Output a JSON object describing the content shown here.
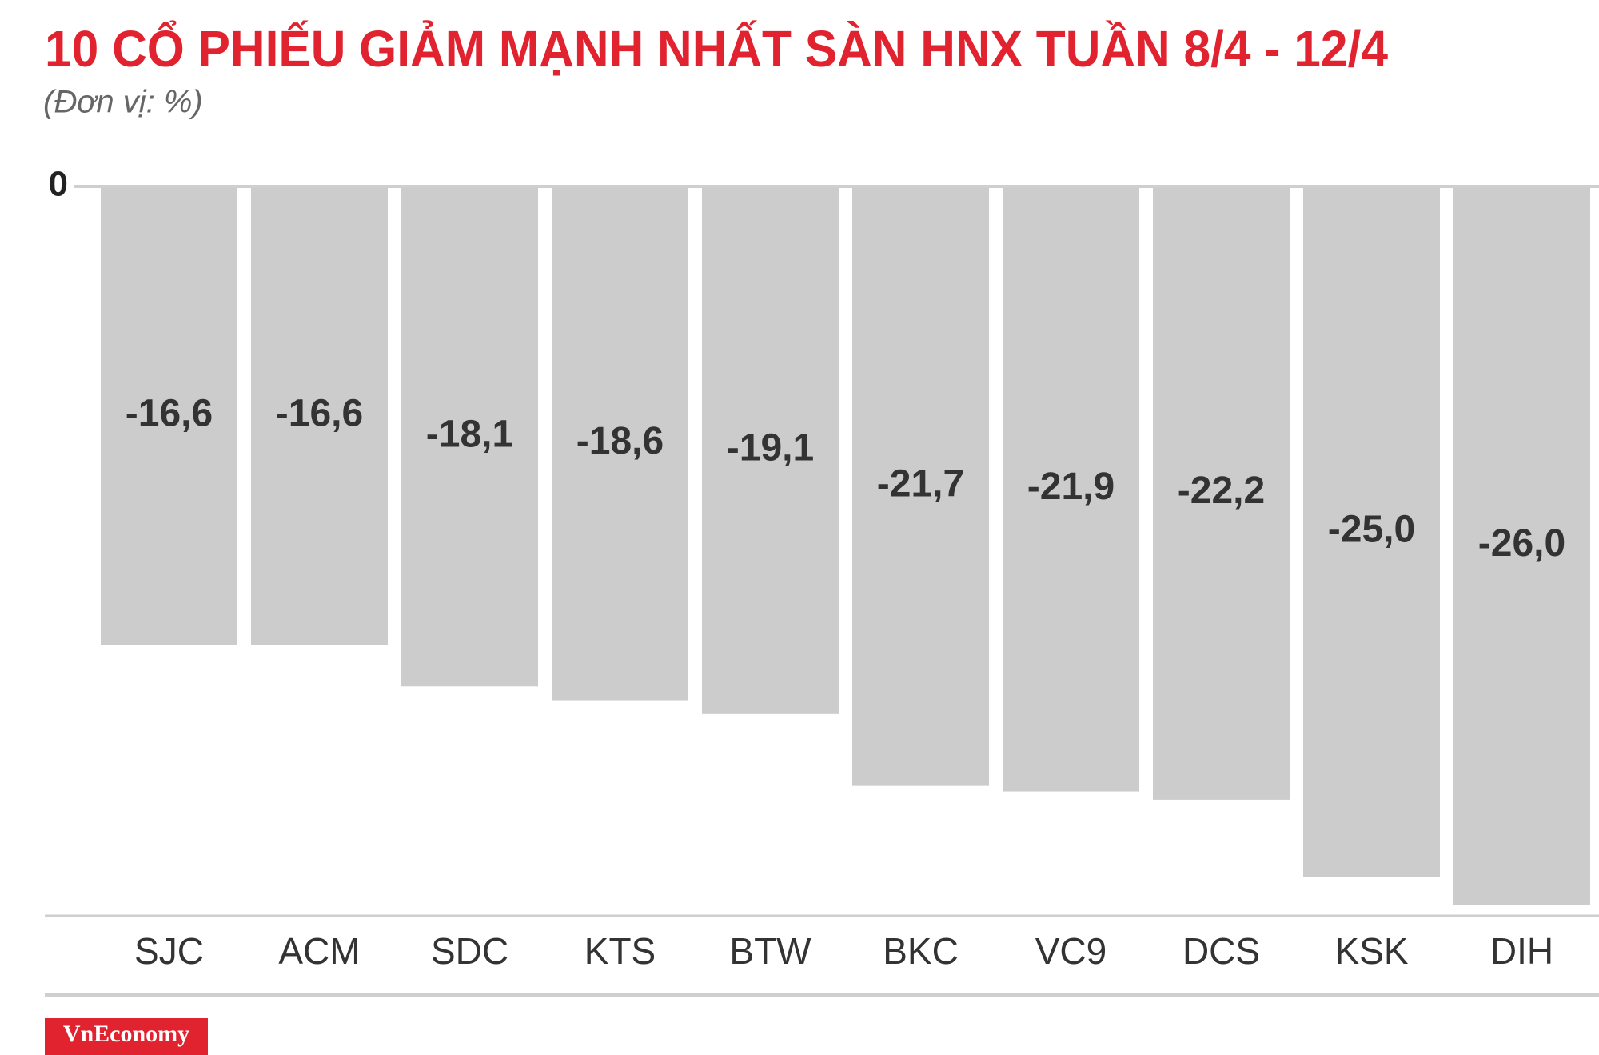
{
  "chart_data": {
    "type": "bar",
    "title": "10 CỔ PHIẾU GIẢM MẠNH NHẤT SÀN HNX TUẦN 8/4 - 12/4",
    "subtitle": "(Đơn vị: %)",
    "categories": [
      "SJC",
      "ACM",
      "SDC",
      "KTS",
      "BTW",
      "BKC",
      "VC9",
      "DCS",
      "KSK",
      "DIH"
    ],
    "values": [
      -16.6,
      -16.6,
      -18.1,
      -18.6,
      -19.1,
      -21.7,
      -21.9,
      -22.2,
      -25.0,
      -26.0
    ],
    "value_labels": [
      "-16,6",
      "-16,6",
      "-18,1",
      "-18,6",
      "-19,1",
      "-21,7",
      "-21,9",
      "-22,2",
      "-25,0",
      "-26,0"
    ],
    "color": "#cdcccd",
    "ylim": [
      -26.4,
      0
    ],
    "yticks": [
      0
    ],
    "grid": false
  },
  "logo": "VnEconomy"
}
